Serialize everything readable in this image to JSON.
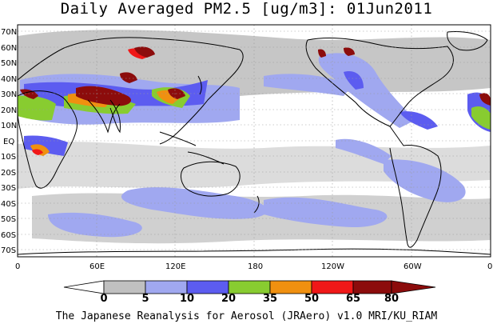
{
  "title": "Daily Averaged PM2.5 [ug/m3]: 01Jun2011",
  "credit": "The Japanese Reanalysis for Aerosol (JRAero) v1.0 MRI/KU_RIAM",
  "map": {
    "lat_labels": [
      "70N",
      "60N",
      "50N",
      "40N",
      "30N",
      "20N",
      "10N",
      "EQ",
      "10S",
      "20S",
      "30S",
      "40S",
      "50S",
      "60S",
      "70S"
    ],
    "lon_labels": [
      "0",
      "60E",
      "120E",
      "180",
      "120W",
      "60W",
      "0"
    ]
  },
  "colorbar": {
    "levels": [
      "0",
      "5",
      "10",
      "20",
      "35",
      "50",
      "65",
      "80"
    ],
    "colors": [
      "#ffffff",
      "#c0c0c0",
      "#a0a8f0",
      "#5c5cf0",
      "#88cc30",
      "#f09010",
      "#f01818",
      "#8c0c0c"
    ]
  }
}
